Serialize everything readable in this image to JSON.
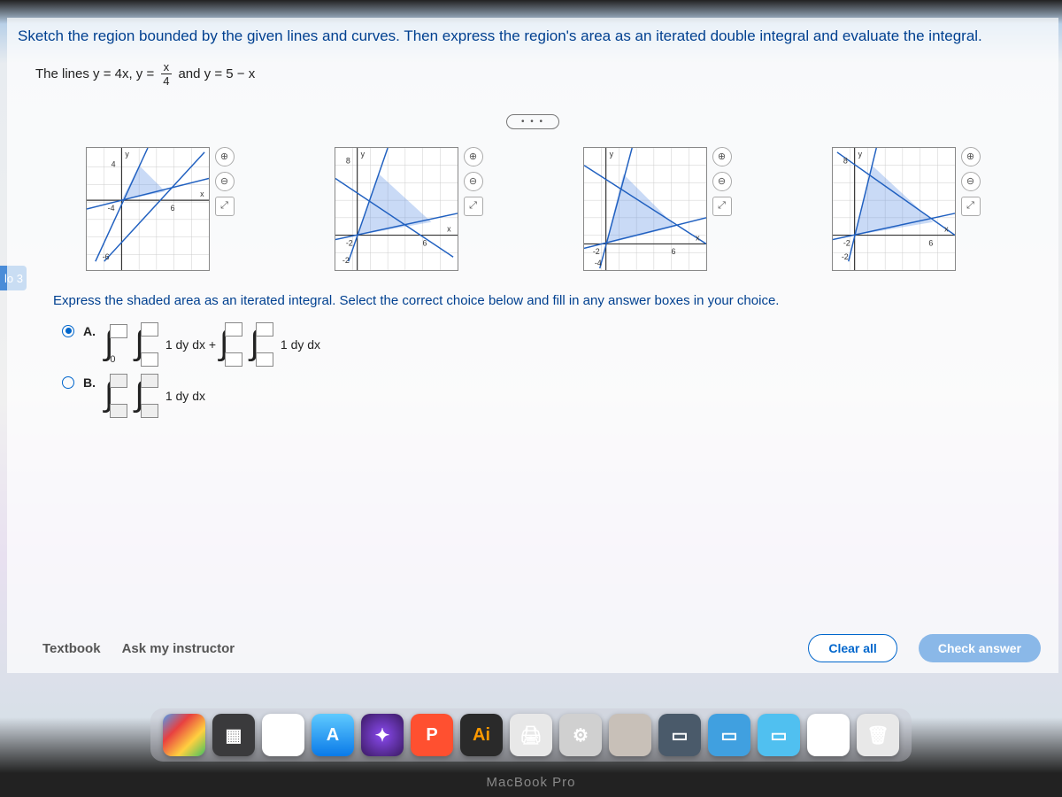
{
  "question": {
    "prompt": "Sketch the region bounded by the given lines and curves. Then express the region's area as an iterated double integral and evaluate the integral.",
    "equation_prefix": "The lines y = 4x, y =",
    "frac_num": "x",
    "frac_den": "4",
    "equation_suffix": "and y = 5 − x",
    "instruction": "Express the shaded area as an iterated integral. Select the correct choice below and fill in any answer boxes in your choice."
  },
  "sidebar_hint": "lo 3",
  "more_dots": "• • •",
  "graphs": {
    "tool_zoom_in": "⊕",
    "tool_zoom_out": "⊖",
    "tool_expand": "⤢",
    "axis_y": "y",
    "axis_x": "x"
  },
  "choices": {
    "a": {
      "label": "A.",
      "expr_mid": "1 dy dx +",
      "expr_end": "1 dy dx",
      "bound_zero": "0",
      "selected": true
    },
    "b": {
      "label": "B.",
      "expr_end": "1 dy dx",
      "selected": false
    }
  },
  "actions": {
    "textbook": "Textbook",
    "ask": "Ask my instructor",
    "clear": "Clear all",
    "check": "Check answer"
  },
  "dock": {
    "items": [
      {
        "bg": "linear-gradient(135deg,#4f9ef0,#e84040,#ffd040,#40c060)",
        "glyph": "",
        "name": "chrome"
      },
      {
        "bg": "#3a3a3c",
        "glyph": "▦",
        "name": "files"
      },
      {
        "bg": "#ffffff",
        "glyph": "⋮⋮",
        "name": "grid"
      },
      {
        "bg": "linear-gradient(180deg,#5fcaff,#0a7ae8)",
        "glyph": "A",
        "name": "appstore"
      },
      {
        "bg": "radial-gradient(circle,#8a4af0,#3a1a60)",
        "glyph": "✦",
        "name": "settings"
      },
      {
        "bg": "#ff5030",
        "glyph": "P",
        "name": "powerpoint"
      },
      {
        "bg": "#2a2a2a",
        "glyph": "Ai",
        "name": "illustrator",
        "color": "#ff9a00"
      },
      {
        "bg": "#e8e8e8",
        "glyph": "🖨",
        "name": "printer"
      },
      {
        "bg": "#d0d0d0",
        "glyph": "⚙",
        "name": "prefs"
      },
      {
        "bg": "#c8c0b8",
        "glyph": "",
        "name": "blank1"
      },
      {
        "bg": "#4a5a6a",
        "glyph": "▭",
        "name": "window1"
      },
      {
        "bg": "#40a0e0",
        "glyph": "▭",
        "name": "window2"
      },
      {
        "bg": "#50c0f0",
        "glyph": "▭",
        "name": "window3"
      },
      {
        "bg": "#ffffff",
        "glyph": "▦",
        "name": "window4"
      },
      {
        "bg": "#e8e8e8",
        "glyph": "🗑",
        "name": "trash"
      }
    ]
  },
  "device_label": "MacBook Pro",
  "colors": {
    "question_text": "#004090",
    "accent": "#0066cc",
    "plot": "#2060c0",
    "shade": "rgba(100,150,230,0.35)"
  }
}
